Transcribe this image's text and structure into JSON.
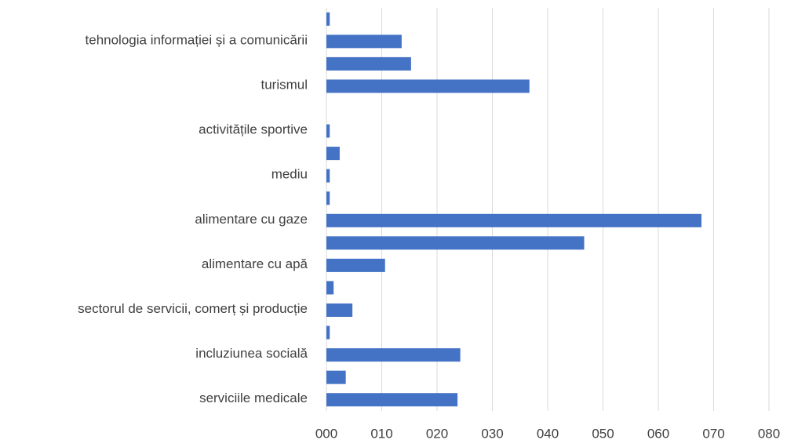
{
  "chart_data": {
    "type": "hbar",
    "categories": [
      null,
      "tehnologia informației și a comunicării",
      null,
      "turismul",
      null,
      "activitățile sportive",
      null,
      "mediu",
      null,
      "alimentare cu gaze",
      null,
      "alimentare cu apă",
      null,
      "sectorul de servicii, comerț și producție",
      null,
      "incluziunea socială",
      null,
      "serviciile medicale"
    ],
    "values": [
      0.6,
      13.6,
      15.3,
      36.7,
      0,
      0.6,
      2.4,
      0.6,
      0.6,
      67.8,
      46.6,
      10.6,
      1.3,
      4.7,
      0.6,
      24.2,
      3.5,
      23.7
    ],
    "color": "#4472c4",
    "xlim": [
      0,
      80
    ],
    "xticks": [
      {
        "value": 0,
        "label": "000"
      },
      {
        "value": 10,
        "label": "010"
      },
      {
        "value": 20,
        "label": "020"
      },
      {
        "value": 30,
        "label": "030"
      },
      {
        "value": 40,
        "label": "040"
      },
      {
        "value": 50,
        "label": "050"
      },
      {
        "value": 60,
        "label": "060"
      },
      {
        "value": 70,
        "label": "070"
      },
      {
        "value": 80,
        "label": "080"
      }
    ],
    "grid": true
  }
}
